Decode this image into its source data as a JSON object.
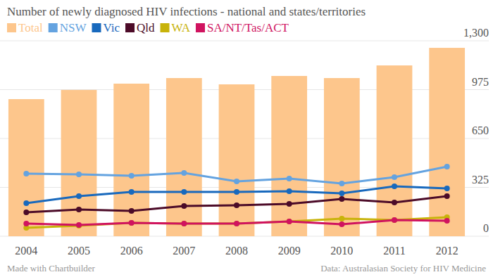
{
  "chart_data": {
    "type": "bar",
    "title": "Number of newly diagnosed HIV infections - national and states/territories",
    "credit": "Made with Chartbuilder",
    "source": "Data: Australasian Society for HIV Medicine",
    "categories": [
      "2004",
      "2005",
      "2006",
      "2007",
      "2008",
      "2009",
      "2010",
      "2011",
      "2012"
    ],
    "series": [
      {
        "name": "Total",
        "type": "bar",
        "color": "#fdc68c",
        "values": [
          912,
          973,
          1015,
          1052,
          1010,
          1066,
          1052,
          1136,
          1253
        ]
      },
      {
        "name": "NSW",
        "type": "line",
        "color": "#64a3e0",
        "marker": "circle",
        "values": [
          416,
          411,
          402,
          421,
          365,
          383,
          351,
          393,
          463
        ]
      },
      {
        "name": "Vic",
        "type": "line",
        "color": "#1869bd",
        "marker": "circle",
        "values": [
          220,
          267,
          295,
          295,
          295,
          299,
          285,
          332,
          318
        ]
      },
      {
        "name": "Qld",
        "type": "line",
        "color": "#4c0b28",
        "marker": "circle",
        "values": [
          159,
          178,
          168,
          201,
          206,
          215,
          248,
          224,
          267
        ]
      },
      {
        "name": "WA",
        "type": "line",
        "color": "#c8b30a",
        "marker": "circle",
        "values": [
          56,
          70,
          89,
          84,
          84,
          98,
          117,
          108,
          126
        ]
      },
      {
        "name": "SA/NT/Tas/ACT",
        "type": "line",
        "color": "#d0135f",
        "marker": "circle",
        "values": [
          84,
          75,
          89,
          84,
          84,
          98,
          79,
          108,
          103
        ]
      }
    ],
    "ylim": [
      0,
      1300
    ],
    "yticks": [
      0,
      325,
      650,
      975,
      {
        "value": 1300,
        "label": "1,300"
      }
    ],
    "grid": true,
    "legend": "top-left"
  }
}
